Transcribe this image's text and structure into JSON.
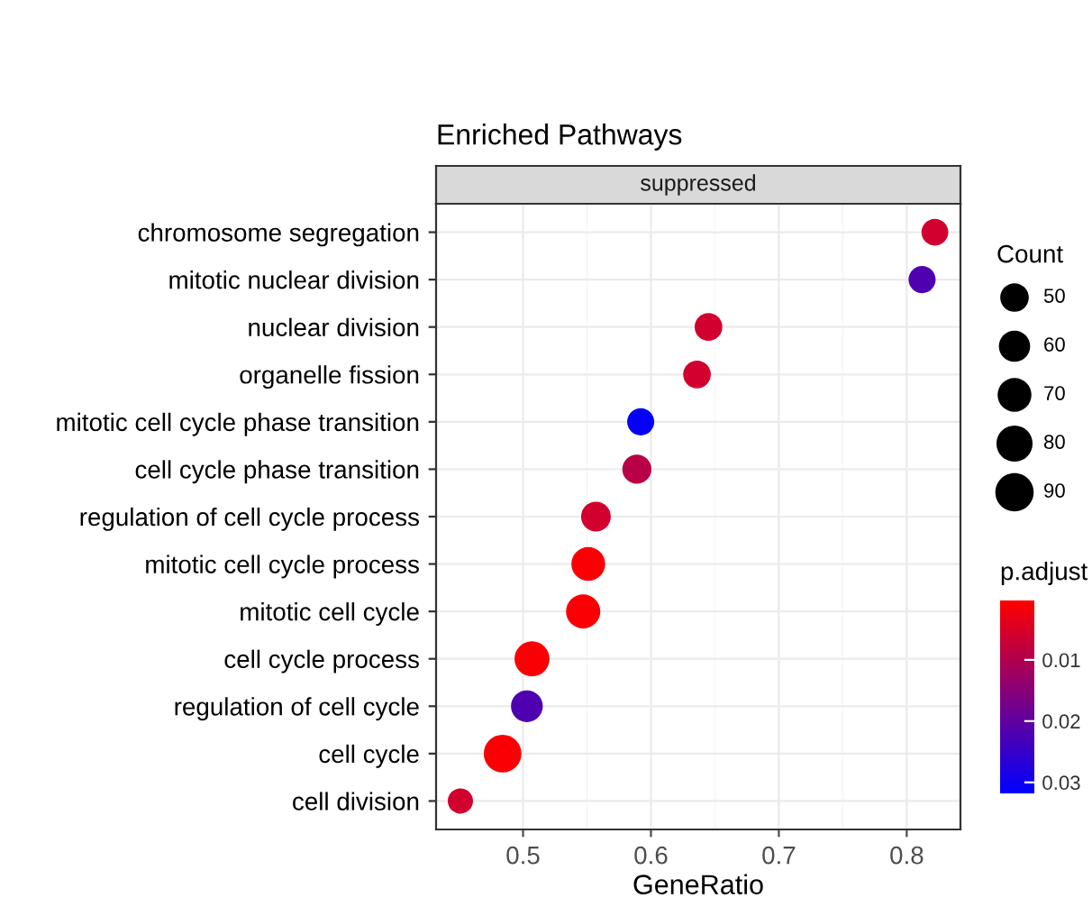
{
  "chart_data": {
    "type": "bubble",
    "title": "Enriched Pathways",
    "subtitle": "suppressed",
    "xlabel": "GeneRatio",
    "legend_title": "Count",
    "clabel": "p.adjust",
    "categories": [
      "chromosome segregation",
      "mitotic nuclear division",
      "nuclear division",
      "organelle fission",
      "mitotic cell cycle phase transition",
      "cell cycle phase transition",
      "regulation of cell cycle process",
      "mitotic cell cycle process",
      "mitotic cell cycle",
      "cell cycle process",
      "regulation of cell cycle",
      "cell cycle",
      "cell division"
    ],
    "values": [
      0.822,
      0.812,
      0.645,
      0.636,
      0.592,
      0.589,
      0.557,
      0.551,
      0.547,
      0.507,
      0.503,
      0.484,
      0.451
    ],
    "sizes": [
      44,
      45,
      47,
      47,
      45,
      52,
      54,
      70,
      72,
      75,
      62,
      87,
      39
    ],
    "size_legend": [
      50,
      60,
      70,
      80,
      90
    ],
    "cvalues": [
      0.006,
      0.022,
      0.006,
      0.006,
      0.031,
      0.009,
      0.006,
      0.001,
      0.001,
      0.001,
      0.022,
      0.001,
      0.006
    ],
    "clim": [
      0.0003,
      0.0318
    ],
    "cticks": [
      0.01,
      0.02,
      0.03
    ],
    "orientation": "horizontal",
    "xlim": [
      0.432,
      0.842
    ],
    "xticks": [
      0.5,
      0.6,
      0.7,
      0.8
    ],
    "grid": true
  }
}
